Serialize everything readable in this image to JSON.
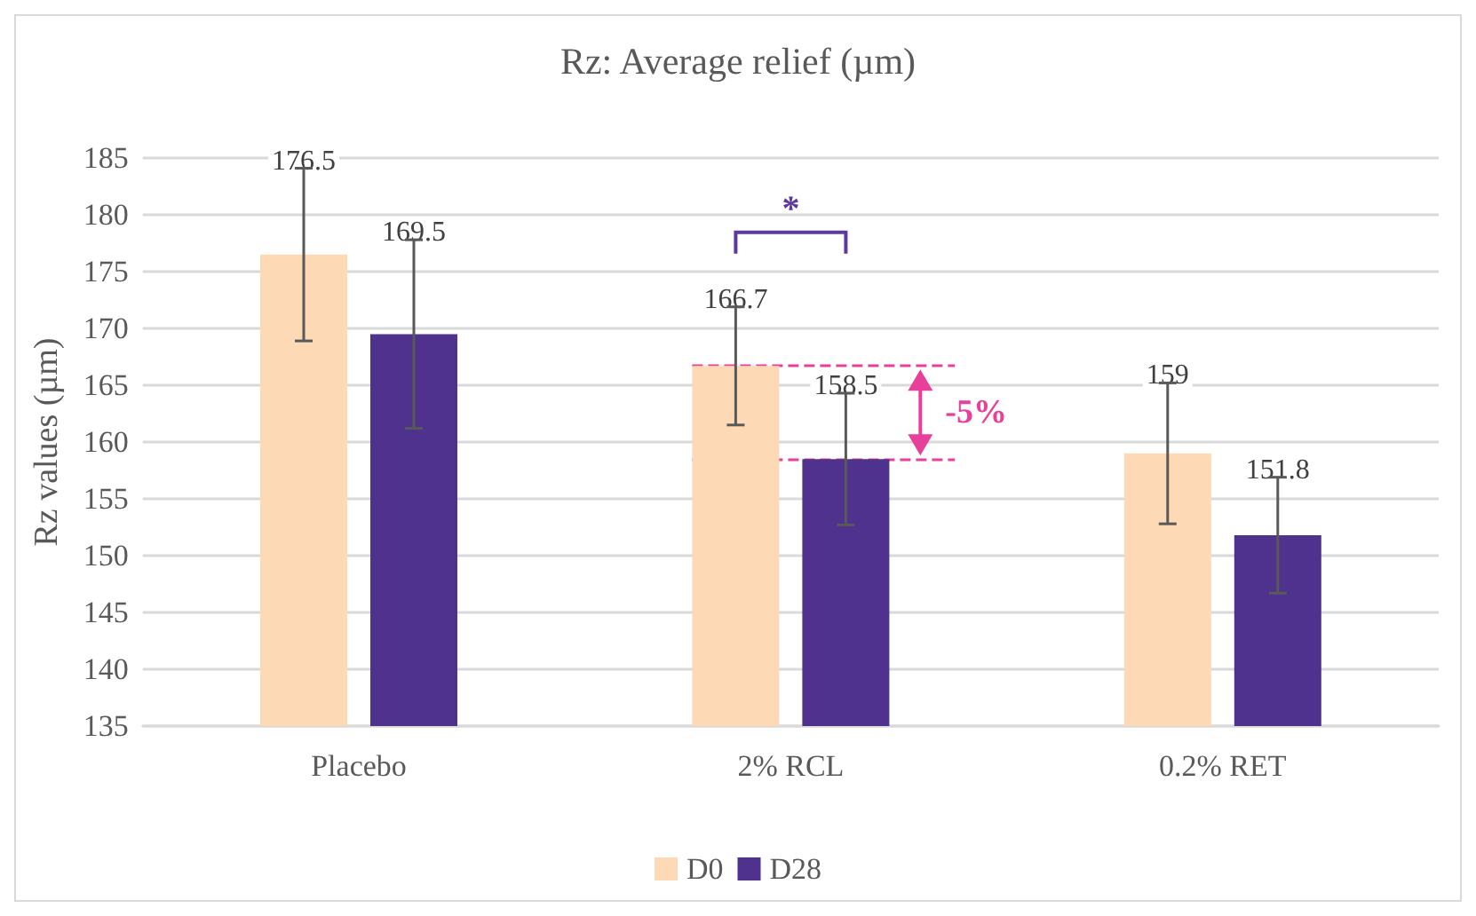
{
  "chart_data": {
    "type": "bar",
    "title": "Rz: Average relief (µm)",
    "ylabel": "Rz values (µm)",
    "categories": [
      "Placebo",
      "2% RCL",
      "0.2% RET"
    ],
    "series": [
      {
        "name": "D0",
        "color": "#fdd9b5",
        "values": [
          176.5,
          166.7,
          159
        ],
        "errors": [
          7.6,
          5.2,
          6.2
        ]
      },
      {
        "name": "D28",
        "color": "#4f328e",
        "values": [
          169.5,
          158.5,
          151.8
        ],
        "errors": [
          8.3,
          5.8,
          5.1
        ]
      }
    ],
    "ylim": [
      135,
      185
    ],
    "yticks": [
      135,
      140,
      145,
      150,
      155,
      160,
      165,
      170,
      175,
      180,
      185
    ],
    "grid": "y",
    "legend": "bottom",
    "data_labels": true,
    "ref_lines": [
      {
        "axis": "y",
        "value": 166.7,
        "color": "#e8409a",
        "line_style": "dashed"
      },
      {
        "axis": "y",
        "value": 158.5,
        "color": "#e8409a",
        "line_style": "dashed"
      }
    ],
    "annotations": [
      "*",
      "-5%"
    ]
  }
}
